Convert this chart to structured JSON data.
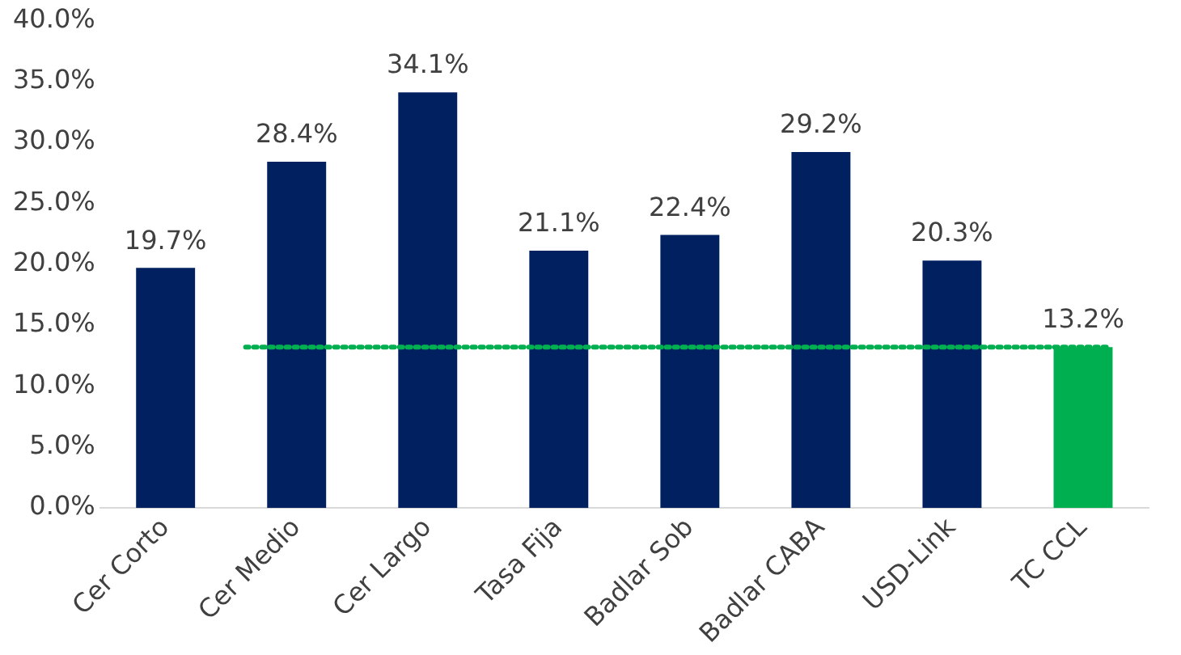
{
  "chart_data": {
    "type": "bar",
    "categories": [
      "Cer Corto",
      "Cer Medio",
      "Cer Largo",
      "Tasa Fija",
      "Badlar Sob",
      "Badlar CABA",
      "USD-Link",
      "TC CCL"
    ],
    "values": [
      19.7,
      28.4,
      34.1,
      21.1,
      22.4,
      29.2,
      20.3,
      13.2
    ],
    "value_labels": [
      "19.7%",
      "28.4%",
      "34.1%",
      "21.1%",
      "22.4%",
      "29.2%",
      "20.3%",
      "13.2%"
    ],
    "colors": [
      "#002060",
      "#002060",
      "#002060",
      "#002060",
      "#002060",
      "#002060",
      "#002060",
      "#00b050"
    ],
    "ylim": [
      0,
      40
    ],
    "yticks": [
      {
        "value": 0,
        "label": "0.0%"
      },
      {
        "value": 5,
        "label": "5.0%"
      },
      {
        "value": 10,
        "label": "10.0%"
      },
      {
        "value": 15,
        "label": "15.0%"
      },
      {
        "value": 20,
        "label": "20.0%"
      },
      {
        "value": 25,
        "label": "25.0%"
      },
      {
        "value": 30,
        "label": "30.0%"
      },
      {
        "value": 35,
        "label": "35.0%"
      },
      {
        "value": 40,
        "label": "40.0%"
      }
    ],
    "ref_lines": [
      {
        "axis": "y",
        "value": 13.2,
        "color": "#00b050",
        "line_style": "dotted"
      }
    ],
    "grid": false,
    "legend": false
  }
}
